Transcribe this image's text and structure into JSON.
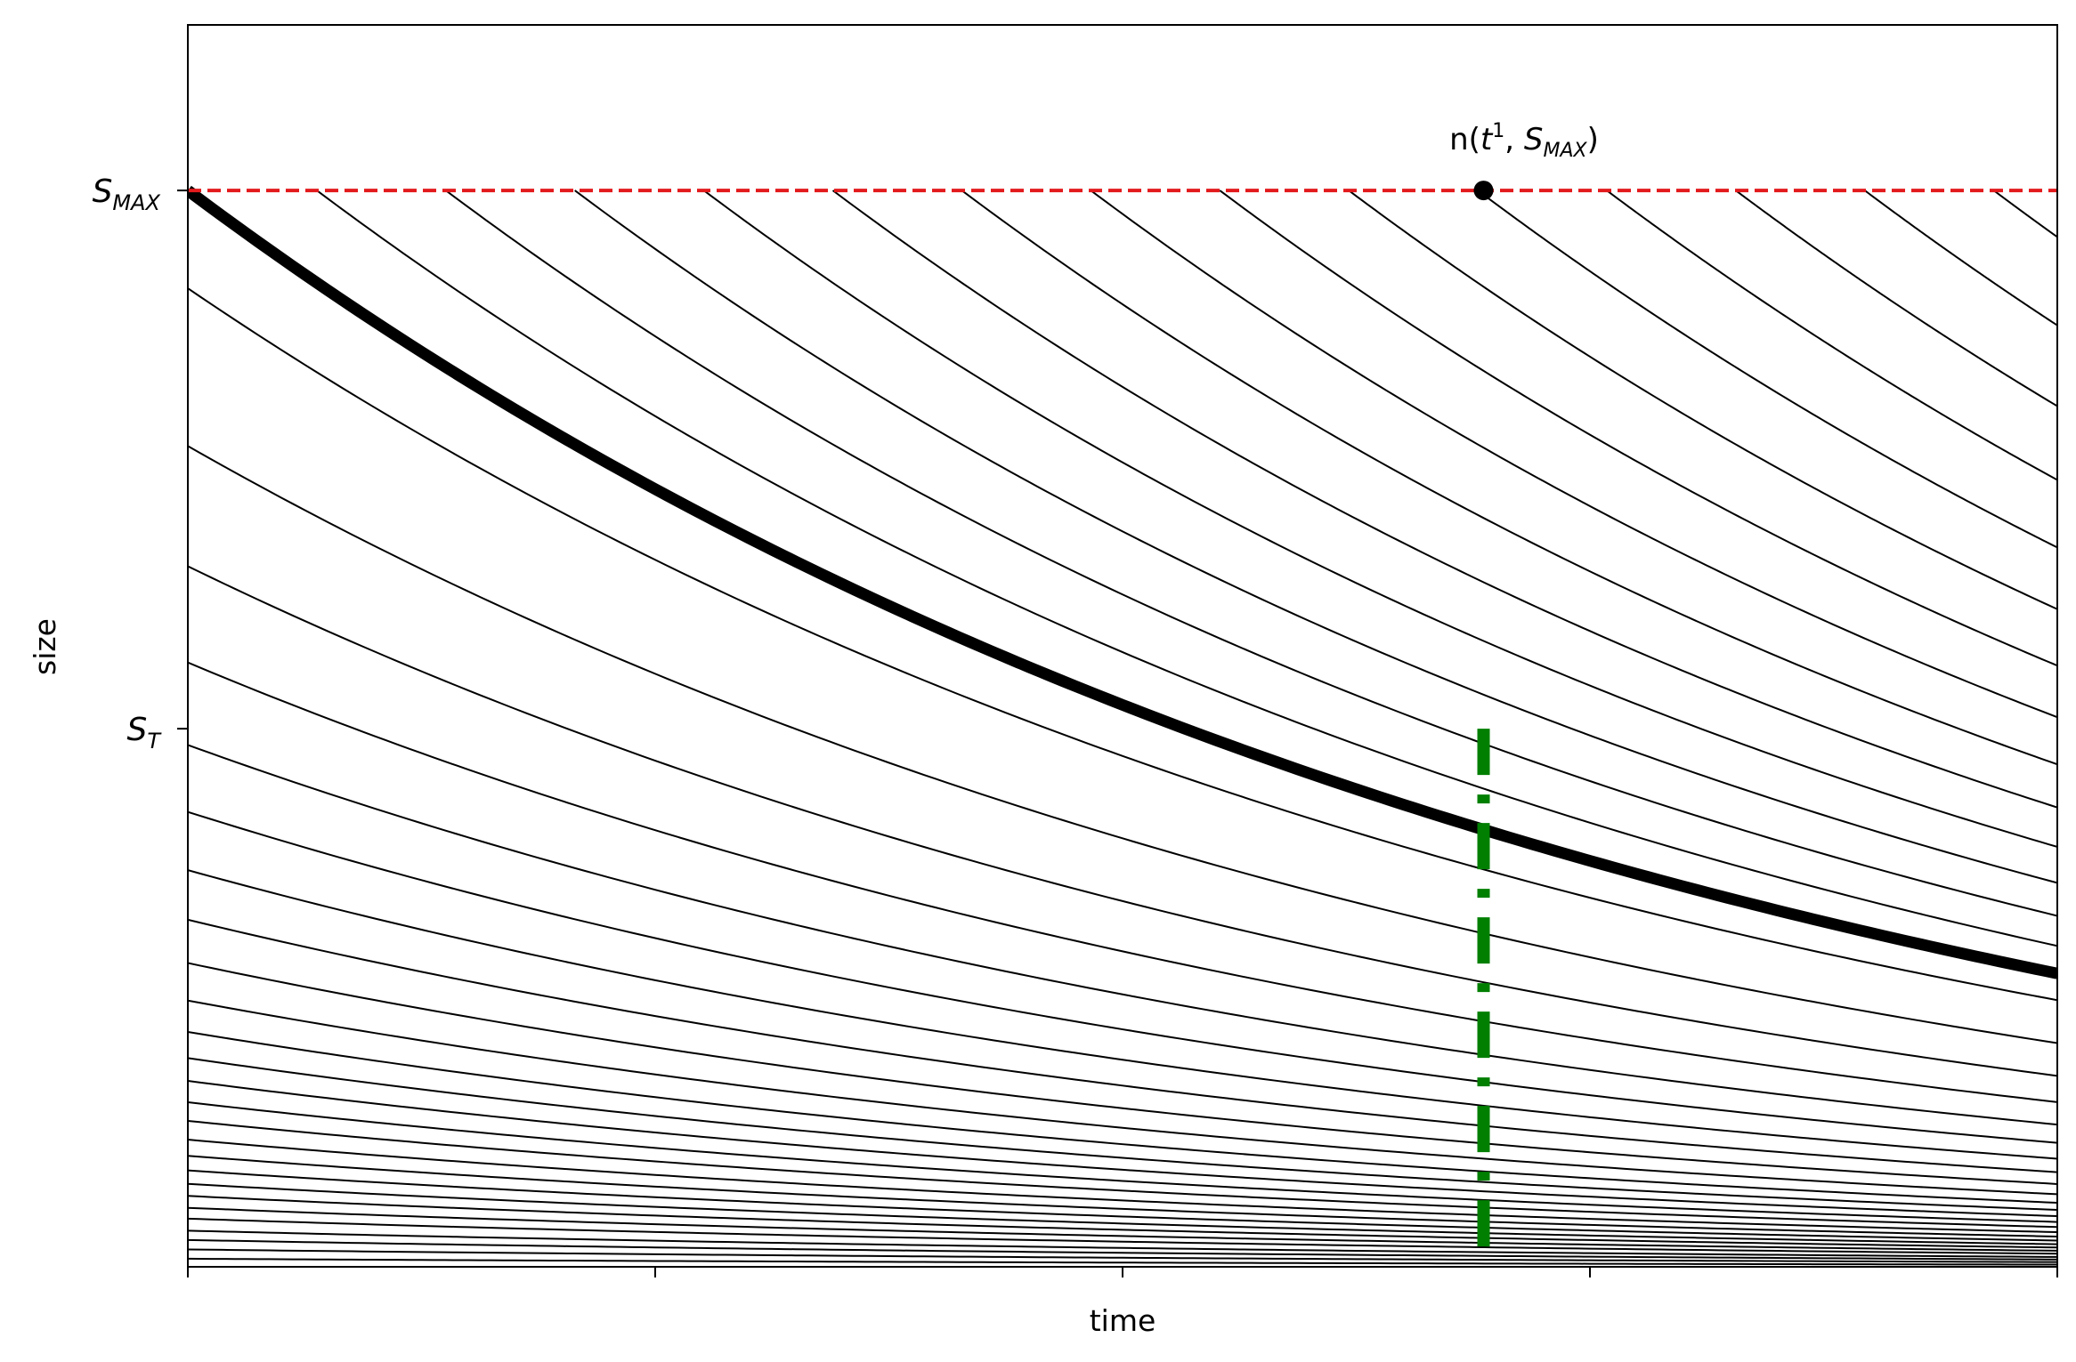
{
  "chart_data": {
    "type": "line",
    "xlabel": "time",
    "ylabel": "size",
    "xlim": [
      0,
      1
    ],
    "ylim": [
      0,
      1
    ],
    "x_ticks": [
      0,
      0.25,
      0.5,
      0.75,
      1.0
    ],
    "y_ticks": [
      {
        "value": 0.8667,
        "label_base": "S",
        "label_sub": "MAX"
      },
      {
        "value": 0.4333,
        "label_base": "S",
        "label_sub": "T"
      }
    ],
    "grid": false,
    "legend": "none",
    "decay_rate": 1.3,
    "smax_line": {
      "y": 0.8667,
      "color": "#e31a1c",
      "style": "dashed"
    },
    "cohort_lines": {
      "color": "#000000",
      "start_times": [
        0.069,
        0.138,
        0.207,
        0.276,
        0.345,
        0.414,
        0.483,
        0.552,
        0.621,
        0.69,
        0.759,
        0.828,
        0.897,
        0.966
      ],
      "initial_sizes_at_t0": [
        0.7879,
        0.6609,
        0.5641,
        0.4866,
        0.4202,
        0.3663,
        0.3194,
        0.2795,
        0.2446,
        0.2144,
        0.1891,
        0.1681,
        0.1497,
        0.1325,
        0.1175,
        0.1024,
        0.0894,
        0.0776,
        0.0668,
        0.0571,
        0.0475,
        0.0388,
        0.0291,
        0.0216,
        0.014,
        0.0065
      ]
    },
    "highlight_line": {
      "start_time": 0,
      "start_size": 0.8667,
      "color": "#000000"
    },
    "marker": {
      "x": 0.6931,
      "y": 0.8667,
      "label_prefix": "n(",
      "label_t": "t",
      "label_sup": "1",
      "label_sep": ", ",
      "label_s": "S",
      "label_sub": "MAX",
      "label_suffix": ")"
    },
    "vertical_line": {
      "x": 0.6931,
      "y_from": 0,
      "y_to": 0.4333,
      "color": "#007f00",
      "style": "dashdot"
    }
  }
}
